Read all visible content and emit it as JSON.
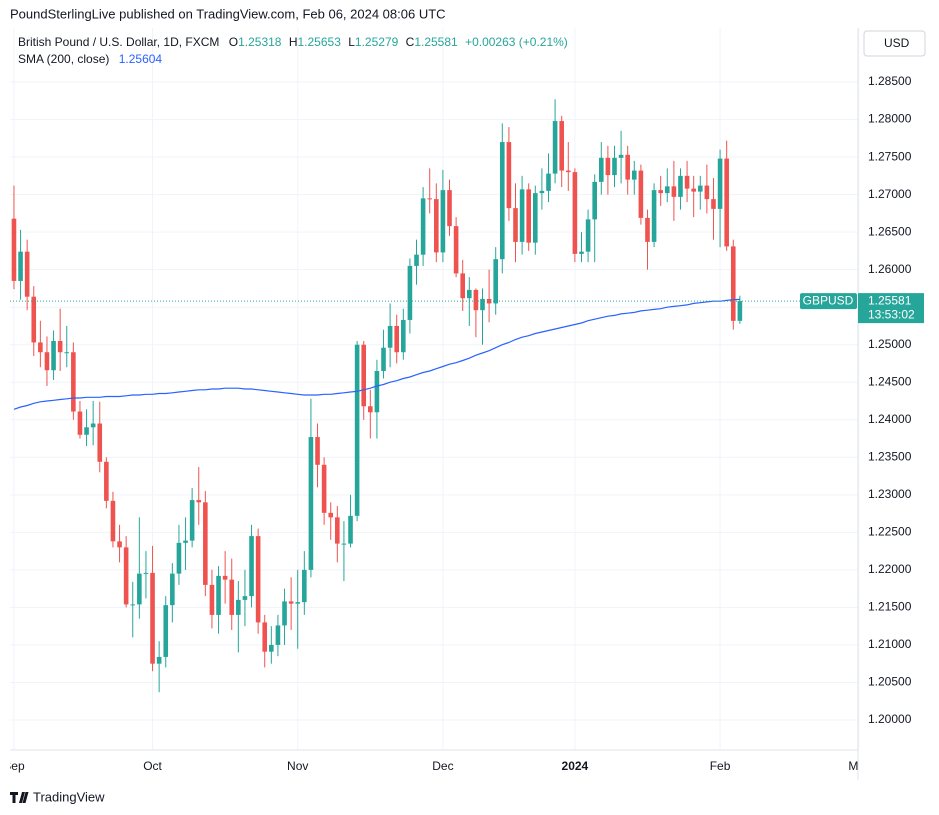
{
  "header": "PoundSterlingLive published on TradingView.com, Feb 06, 2024 08:06 UTC",
  "footer": "TradingView",
  "chart_data": {
    "type": "candlestick",
    "title": "British Pound / U.S. Dollar, 1D, FXCM",
    "ohlc_labels": [
      "O",
      "H",
      "L",
      "C"
    ],
    "change_label": "+0.00263 (+0.21%)",
    "currency": "USD",
    "symbol": "GBPUSD",
    "countdown": "13:53:02",
    "up_color": "#26a69a",
    "down_color": "#ef5350",
    "open": [
      1.2668,
      1.2585,
      1.2624,
      1.2564,
      1.2503,
      1.249,
      1.2466,
      1.2505,
      1.249,
      1.249,
      1.2411,
      1.238,
      1.239,
      1.2395,
      1.2344,
      1.2292,
      1.2238,
      1.223,
      1.2154,
      1.2154,
      1.2195,
      1.2196,
      1.2075,
      1.2084,
      1.2153,
      1.2195,
      1.2236,
      1.2239,
      1.2293,
      1.229,
      1.218,
      1.214,
      1.2192,
      1.2187,
      1.214,
      1.216,
      1.2165,
      1.2245,
      1.213,
      1.2091,
      1.21,
      1.2126,
      1.2158,
      1.2155,
      1.2157,
      1.22,
      1.2377,
      1.234,
      1.2276,
      1.227,
      1.2235,
      1.2235,
      1.2272,
      1.25,
      1.2418,
      1.241,
      1.2465,
      1.2496,
      1.2525,
      1.249,
      1.2533,
      1.2605,
      1.262,
      1.2695,
      1.2694,
      1.2623,
      1.2706,
      1.2658,
      1.2595,
      1.2562,
      1.2573,
      1.2546,
      1.2561,
      1.2555,
      1.2614,
      1.277,
      1.2682,
      1.2637,
      1.2707,
      1.2636,
      1.2702,
      1.2705,
      1.2728,
      1.2798,
      1.2732,
      1.273,
      1.2621,
      1.2624,
      1.2667,
      1.2717,
      1.2749,
      1.2726,
      1.2749,
      1.2753,
      1.272,
      1.2732,
      1.2669,
      1.2637,
      1.2706,
      1.2702,
      1.2711,
      1.2697,
      1.2725,
      1.2708,
      1.2704,
      1.2712,
      1.2694,
      1.2681,
      1.2748,
      1.2631,
      1.25318
    ],
    "high": [
      1.2712,
      1.2653,
      1.264,
      1.2578,
      1.2532,
      1.2511,
      1.2519,
      1.2548,
      1.2525,
      1.2503,
      1.2425,
      1.2414,
      1.2425,
      1.2424,
      1.235,
      1.2304,
      1.226,
      1.2245,
      1.2184,
      1.227,
      1.2225,
      1.2232,
      1.2105,
      1.2165,
      1.2209,
      1.226,
      1.227,
      1.2309,
      1.2337,
      1.2305,
      1.22,
      1.2205,
      1.2225,
      1.2215,
      1.2185,
      1.22,
      1.226,
      1.2255,
      1.214,
      1.2125,
      1.214,
      1.2175,
      1.219,
      1.22,
      1.2225,
      1.2428,
      1.2395,
      1.235,
      1.229,
      1.2285,
      1.2265,
      1.23,
      1.2505,
      1.2505,
      1.244,
      1.248,
      1.252,
      1.2555,
      1.254,
      1.2548,
      1.2615,
      1.264,
      1.271,
      1.2735,
      1.2715,
      1.2733,
      1.272,
      1.267,
      1.2613,
      1.259,
      1.2575,
      1.2575,
      1.26,
      1.263,
      1.2795,
      1.279,
      1.2715,
      1.2725,
      1.2715,
      1.2712,
      1.2735,
      1.2755,
      1.2827,
      1.2805,
      1.277,
      1.2735,
      1.265,
      1.268,
      1.2727,
      1.277,
      1.2765,
      1.2765,
      1.2785,
      1.2765,
      1.2745,
      1.274,
      1.268,
      1.2715,
      1.2725,
      1.2735,
      1.2745,
      1.2735,
      1.2745,
      1.2725,
      1.2725,
      1.274,
      1.2722,
      1.276,
      1.2772,
      1.264,
      1.25653
    ],
    "low": [
      1.2574,
      1.256,
      1.2546,
      1.2485,
      1.247,
      1.2445,
      1.2453,
      1.2465,
      1.247,
      1.24,
      1.2375,
      1.2365,
      1.2366,
      1.233,
      1.2282,
      1.223,
      1.221,
      1.215,
      1.211,
      1.2135,
      1.2162,
      1.2065,
      1.2037,
      1.207,
      1.213,
      1.218,
      1.22,
      1.223,
      1.226,
      1.2165,
      1.2122,
      1.2115,
      1.2155,
      1.212,
      1.209,
      1.2125,
      1.215,
      1.2115,
      1.207,
      1.2075,
      1.2085,
      1.21,
      1.212,
      1.2095,
      1.214,
      1.219,
      1.231,
      1.226,
      1.224,
      1.221,
      1.2185,
      1.223,
      1.2265,
      1.24,
      1.2375,
      1.2375,
      1.2455,
      1.247,
      1.2475,
      1.248,
      1.2515,
      1.258,
      1.2605,
      1.2675,
      1.261,
      1.261,
      1.2645,
      1.259,
      1.2545,
      1.2525,
      1.251,
      1.25,
      1.253,
      1.254,
      1.2595,
      1.2665,
      1.261,
      1.262,
      1.2625,
      1.262,
      1.268,
      1.269,
      1.2715,
      1.271,
      1.2705,
      1.261,
      1.261,
      1.261,
      1.261,
      1.27,
      1.27,
      1.271,
      1.2715,
      1.27,
      1.27,
      1.266,
      1.26,
      1.263,
      1.2685,
      1.269,
      1.2665,
      1.268,
      1.269,
      1.267,
      1.268,
      1.2675,
      1.264,
      1.263,
      1.2625,
      1.252,
      1.25279
    ],
    "close": [
      1.2585,
      1.2624,
      1.2564,
      1.2503,
      1.249,
      1.2466,
      1.2505,
      1.249,
      1.249,
      1.2411,
      1.238,
      1.239,
      1.2395,
      1.2344,
      1.2292,
      1.2238,
      1.223,
      1.2154,
      1.2154,
      1.2195,
      1.2196,
      1.2075,
      1.2084,
      1.2153,
      1.2195,
      1.2236,
      1.2239,
      1.2293,
      1.229,
      1.218,
      1.214,
      1.2192,
      1.2187,
      1.214,
      1.216,
      1.2165,
      1.2245,
      1.213,
      1.2091,
      1.21,
      1.2126,
      1.2158,
      1.2155,
      1.2157,
      1.22,
      1.2377,
      1.234,
      1.2276,
      1.227,
      1.2235,
      1.2235,
      1.2272,
      1.25,
      1.2418,
      1.241,
      1.2465,
      1.2496,
      1.2525,
      1.249,
      1.2533,
      1.2605,
      1.262,
      1.2695,
      1.2694,
      1.2623,
      1.2706,
      1.2658,
      1.2595,
      1.2562,
      1.2573,
      1.2546,
      1.2561,
      1.2555,
      1.2614,
      1.277,
      1.2682,
      1.2637,
      1.2707,
      1.2636,
      1.2702,
      1.2705,
      1.2728,
      1.2798,
      1.2732,
      1.273,
      1.2621,
      1.2624,
      1.2667,
      1.2717,
      1.2749,
      1.2726,
      1.2749,
      1.2753,
      1.272,
      1.2732,
      1.2669,
      1.2637,
      1.2706,
      1.2702,
      1.2711,
      1.2697,
      1.2725,
      1.2708,
      1.2704,
      1.2712,
      1.2694,
      1.2681,
      1.2748,
      1.2631,
      1.25318,
      1.25581
    ],
    "sma": {
      "name": "SMA (200, close)",
      "color": "#2962ff",
      "values": [
        1.2414,
        1.2417,
        1.2419,
        1.2422,
        1.2424,
        1.2425,
        1.2426,
        1.2427,
        1.2428,
        1.2429,
        1.2429,
        1.243,
        1.243,
        1.243,
        1.2431,
        1.2431,
        1.2431,
        1.2432,
        1.2433,
        1.2433,
        1.2434,
        1.2434,
        1.2435,
        1.2435,
        1.2436,
        1.2437,
        1.2438,
        1.2439,
        1.244,
        1.244,
        1.2441,
        1.2441,
        1.2442,
        1.2442,
        1.2442,
        1.2441,
        1.2441,
        1.244,
        1.2439,
        1.2438,
        1.2437,
        1.2436,
        1.2435,
        1.2434,
        1.2433,
        1.2433,
        1.2433,
        1.2434,
        1.2434,
        1.2435,
        1.2436,
        1.2437,
        1.2438,
        1.244,
        1.2442,
        1.2445,
        1.2447,
        1.245,
        1.2452,
        1.2455,
        1.2457,
        1.246,
        1.2463,
        1.2465,
        1.2468,
        1.2471,
        1.2474,
        1.2476,
        1.2479,
        1.2482,
        1.2486,
        1.2489,
        1.2492,
        1.2496,
        1.25,
        1.2503,
        1.2507,
        1.251,
        1.2512,
        1.2515,
        1.2517,
        1.2519,
        1.2521,
        1.2523,
        1.2525,
        1.2527,
        1.2529,
        1.2532,
        1.2534,
        1.2536,
        1.2538,
        1.2539,
        1.2541,
        1.2542,
        1.2543,
        1.2545,
        1.2546,
        1.2547,
        1.2548,
        1.255,
        1.2551,
        1.2552,
        1.2553,
        1.2555,
        1.2556,
        1.2557,
        1.2558,
        1.2558,
        1.2559,
        1.256,
        1.25604
      ]
    },
    "xlim": [
      -0.6,
      127.9
    ],
    "xticks": [
      {
        "value": 0,
        "label": "Sep"
      },
      {
        "value": 21,
        "label": "Oct"
      },
      {
        "value": 43,
        "label": "Nov"
      },
      {
        "value": 65,
        "label": "Dec"
      },
      {
        "value": 85,
        "label": "2024"
      },
      {
        "value": 107,
        "label": "Feb"
      },
      {
        "value": 128,
        "label": "Mar"
      }
    ],
    "ylim": [
      1.196,
      1.2922
    ],
    "yticks": [
      {
        "value": 1.2,
        "label": "1.20000"
      },
      {
        "value": 1.205,
        "label": "1.20500"
      },
      {
        "value": 1.21,
        "label": "1.21000"
      },
      {
        "value": 1.215,
        "label": "1.21500"
      },
      {
        "value": 1.22,
        "label": "1.22000"
      },
      {
        "value": 1.225,
        "label": "1.22500"
      },
      {
        "value": 1.23,
        "label": "1.23000"
      },
      {
        "value": 1.235,
        "label": "1.23500"
      },
      {
        "value": 1.24,
        "label": "1.24000"
      },
      {
        "value": 1.245,
        "label": "1.24500"
      },
      {
        "value": 1.25,
        "label": "1.25000"
      },
      {
        "value": 1.255,
        "label": "1.25500"
      },
      {
        "value": 1.26,
        "label": "1.26000"
      },
      {
        "value": 1.265,
        "label": "1.26500"
      },
      {
        "value": 1.27,
        "label": "1.27000"
      },
      {
        "value": 1.275,
        "label": "1.27500"
      },
      {
        "value": 1.28,
        "label": "1.28000"
      },
      {
        "value": 1.285,
        "label": "1.28500"
      }
    ],
    "grid": true
  }
}
